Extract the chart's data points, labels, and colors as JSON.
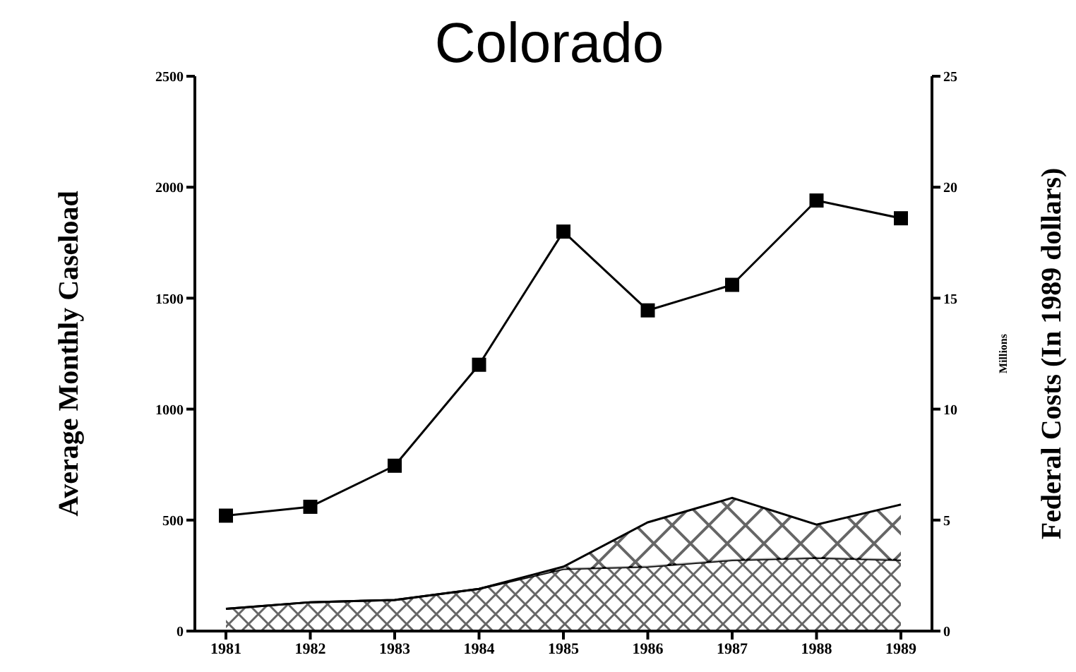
{
  "chart_data": {
    "type": "line",
    "title": "Colorado",
    "ylabel": "Average Monthly Caseload",
    "y2label": "Federal Costs (In 1989 dollars)",
    "annotations": [
      "Millions"
    ],
    "categories": [
      "1981",
      "1982",
      "1983",
      "1984",
      "1985",
      "1986",
      "1987",
      "1988",
      "1989"
    ],
    "series": [
      {
        "marker": "square",
        "color": "#000000",
        "values": [
          520,
          560,
          745,
          1200,
          1800,
          1445,
          1560,
          1940,
          1860
        ]
      },
      {
        "type": "area",
        "axis": "y2",
        "color": "#000000",
        "values": [
          1.0,
          1.3,
          1.4,
          1.9,
          2.8,
          2.9,
          3.2,
          3.3,
          3.2
        ]
      },
      {
        "type": "area",
        "axis": "y2",
        "color": "#000000",
        "values": [
          0,
          0,
          0,
          0,
          0.1,
          2.0,
          2.8,
          1.5,
          2.5
        ]
      }
    ],
    "stacked": true,
    "ylim": [
      0,
      2500
    ],
    "yticks": [
      0,
      500,
      1000,
      1500,
      2000,
      2500
    ],
    "y2lim": [
      0,
      25
    ],
    "y2ticks": [
      0,
      5,
      10,
      15,
      20,
      25
    ],
    "grid": false,
    "legend": false
  }
}
